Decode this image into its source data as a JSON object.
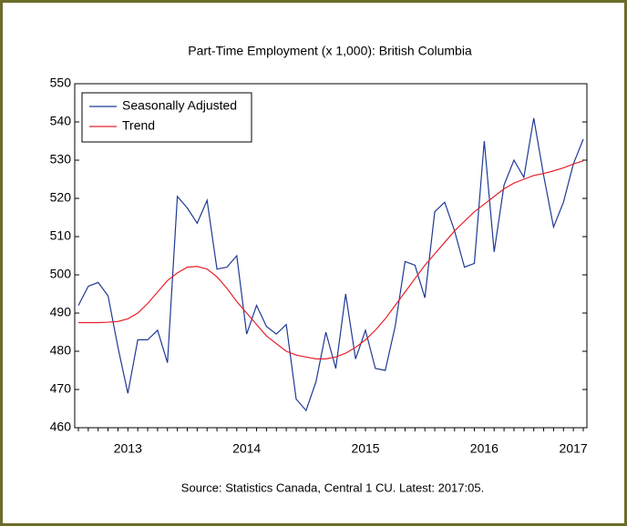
{
  "chart_data": {
    "type": "line",
    "title": "Part-Time Employment (x 1,000): British Columbia",
    "source": "Source: Statistics Canada, Central 1 CU. Latest: 2017:05.",
    "categories": [
      null,
      null,
      null,
      null,
      null,
      "2013",
      null,
      null,
      null,
      null,
      null,
      null,
      null,
      null,
      null,
      null,
      null,
      "2014",
      null,
      null,
      null,
      null,
      null,
      null,
      null,
      null,
      null,
      null,
      null,
      "2015",
      null,
      null,
      null,
      null,
      null,
      null,
      null,
      null,
      null,
      null,
      null,
      "2016",
      null,
      null,
      null,
      null,
      null,
      null,
      null,
      null,
      "2017",
      null
    ],
    "series": [
      {
        "name": "Seasonally Adjusted",
        "color": "#1f3a93",
        "values": [
          492,
          497,
          498,
          494.5,
          481,
          469,
          483,
          483,
          485.5,
          477,
          520.5,
          517.5,
          513.5,
          519.5,
          501.5,
          502,
          505,
          484.5,
          492,
          486.5,
          484.5,
          487,
          467.5,
          464.5,
          472,
          485,
          475.5,
          495,
          478,
          485.5,
          475.5,
          475,
          486.5,
          503.5,
          502.5,
          494,
          516.5,
          519,
          511.5,
          502,
          503,
          535,
          506,
          523.5,
          530,
          525.5,
          541,
          526,
          512.5,
          519,
          529,
          535.5
        ]
      },
      {
        "name": "Trend",
        "color": "#e8202a",
        "values": [
          487.5,
          487.5,
          487.5,
          487.6,
          487.8,
          488.5,
          490,
          492.5,
          495.5,
          498.5,
          500.5,
          502,
          502.2,
          501.5,
          499.5,
          496.5,
          493,
          490,
          487,
          484,
          482,
          480,
          479,
          478.5,
          478,
          478,
          478.5,
          479.5,
          481,
          483,
          485.5,
          488.5,
          492,
          495.5,
          499,
          502.5,
          505.5,
          508.5,
          511.5,
          514,
          516.5,
          518.5,
          520.5,
          522.5,
          524,
          525,
          526,
          526.5,
          527.2,
          528,
          529,
          529.8
        ]
      }
    ],
    "ylim": [
      460,
      550
    ],
    "yticks": [
      460,
      470,
      480,
      490,
      500,
      510,
      520,
      530,
      540,
      550
    ],
    "grid": false,
    "legend": "upper left"
  }
}
